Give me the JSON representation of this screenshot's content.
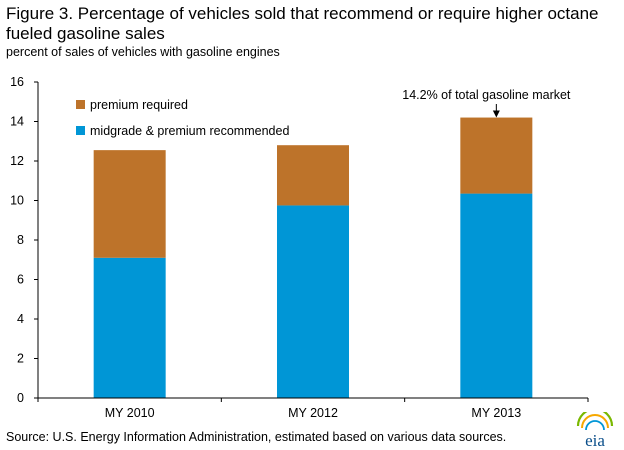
{
  "header": {
    "title": "Figure 3. Percentage of vehicles sold that recommend or require higher octane fueled gasoline sales",
    "subtitle": "percent of sales of vehicles with gasoline engines"
  },
  "footer": {
    "source": "Source: U.S. Energy Information Administration, estimated based on various data sources.",
    "logo_text": "eia"
  },
  "chart_data": {
    "type": "bar",
    "stacked": true,
    "categories": [
      "MY 2010",
      "MY 2012",
      "MY 2013"
    ],
    "series": [
      {
        "name": "midgrade & premium recommended",
        "values": [
          7.1,
          9.75,
          10.35
        ],
        "color": "#0096d6"
      },
      {
        "name": "premium required",
        "values": [
          5.45,
          3.05,
          3.85
        ],
        "color": "#bd732a"
      }
    ],
    "ylim": [
      0,
      16
    ],
    "yticks": [
      0,
      2,
      4,
      6,
      8,
      10,
      12,
      14,
      16
    ],
    "grid": false,
    "legend_position": "top-left",
    "annotations": [
      {
        "text": "14.2% of total gasoline market",
        "category": "MY 2013",
        "value": 14.2
      }
    ]
  }
}
